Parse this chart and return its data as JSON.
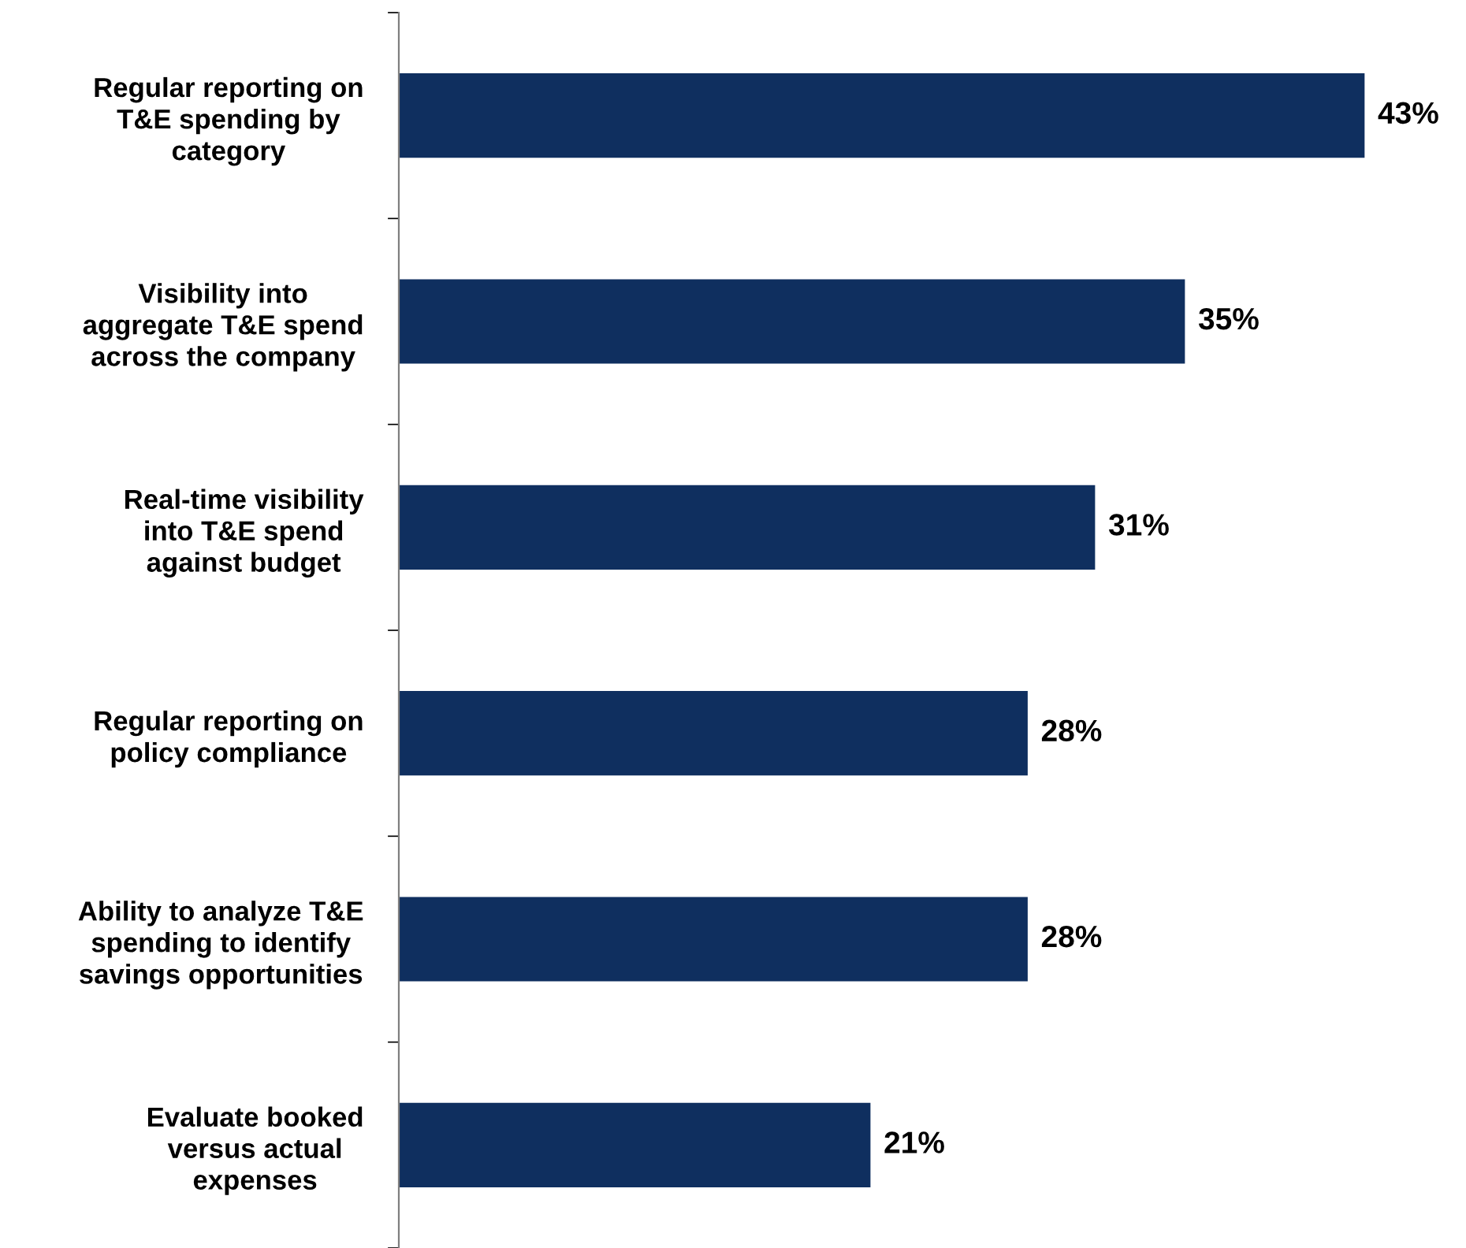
{
  "chart_data": {
    "type": "bar",
    "orientation": "horizontal",
    "categories": [
      "Regular reporting on\nT&E spending by\ncategory",
      "Visibility into\naggregate T&E spend\nacross the company",
      "Real-time visibility\ninto T&E spend\nagainst budget",
      "Regular reporting on\npolicy compliance",
      "Ability to analyze T&E\nspending to identify\nsavings opportunities",
      "Evaluate booked\nversus actual\nexpenses"
    ],
    "values": [
      43,
      35,
      31,
      28,
      28,
      21
    ],
    "value_labels": [
      "43%",
      "35%",
      "31%",
      "28%",
      "28%",
      "21%"
    ],
    "color": "#0f2f5f",
    "tick_labels": "y",
    "grid": false,
    "legend": false
  }
}
